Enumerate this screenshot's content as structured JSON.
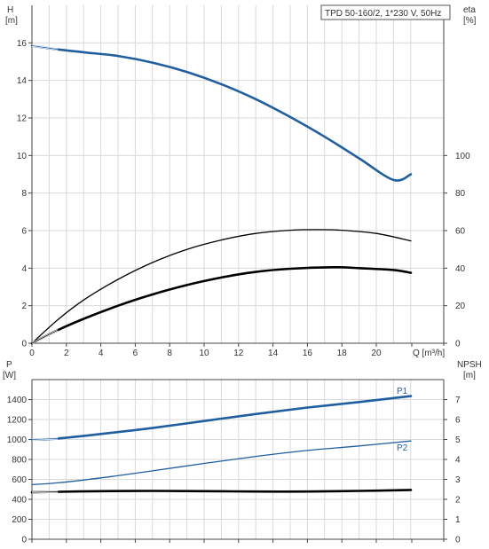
{
  "chart_data": [
    {
      "type": "line",
      "title": "TPD 50-160/2, 1*230 V, 50Hz",
      "xlabel": "Q [m³/h]",
      "xticks": [
        "0",
        "2",
        "4",
        "6",
        "8",
        "10",
        "12",
        "14",
        "16",
        "18",
        "20",
        "Q [m³/h]"
      ],
      "xlim": [
        0,
        22
      ],
      "ylabel_left": {
        "name": "H",
        "unit": "[m]"
      },
      "ylim_left": [
        0,
        18
      ],
      "yticks_left": [
        0,
        2,
        4,
        6,
        8,
        10,
        12,
        14,
        16
      ],
      "ylabel_right": {
        "name": "eta",
        "unit": "[%]"
      },
      "ylim_right": [
        0,
        180
      ],
      "yticks_right": [
        0,
        20,
        40,
        60,
        80,
        100
      ],
      "grid": true,
      "series": [
        {
          "name": "",
          "axis": "left",
          "color": "#1f5fa0",
          "style": "thick",
          "x": [
            0,
            1.5,
            3,
            5,
            7,
            9,
            11,
            13,
            15,
            17,
            19,
            21,
            22.4
          ],
          "y": [
            15.85,
            15.65,
            15.5,
            15.3,
            14.95,
            14.45,
            13.8,
            13.0,
            12.05,
            11.0,
            9.85,
            8.7,
            9.0
          ]
        },
        {
          "name": "",
          "axis": "right",
          "color": "#000000",
          "style": "thin",
          "x": [
            0,
            1.5,
            3,
            5,
            7,
            9,
            11,
            13,
            15,
            16.5,
            18,
            20,
            22.4
          ],
          "y": [
            0,
            12.5,
            23,
            34,
            43,
            50,
            55,
            58.5,
            60.2,
            60.5,
            60.2,
            58.5,
            54.5
          ]
        },
        {
          "name": "",
          "axis": "right",
          "color": "#000000",
          "style": "thick",
          "x": [
            0,
            1.5,
            3,
            5,
            7,
            9,
            11,
            13,
            15,
            17.5,
            19,
            21,
            22.4
          ],
          "y": [
            0,
            7,
            13,
            20,
            26,
            31,
            35,
            38,
            39.7,
            40.5,
            40,
            39,
            37.5
          ]
        }
      ]
    },
    {
      "type": "line",
      "xlim": [
        0,
        22
      ],
      "ylabel_left": {
        "name": "P",
        "unit": "[W]"
      },
      "ylim_left": [
        0,
        1600
      ],
      "yticks_left": [
        0,
        200,
        400,
        600,
        800,
        1000,
        1200,
        1400
      ],
      "ylabel_right": {
        "name": "NPSH",
        "unit": "[m]"
      },
      "ylim_right": [
        0,
        8
      ],
      "yticks_right": [
        0,
        1,
        2,
        3,
        4,
        5,
        6,
        7
      ],
      "grid": true,
      "series": [
        {
          "name": "P1",
          "axis": "left",
          "color": "#1f5fa0",
          "style": "thick",
          "x": [
            0,
            1.5,
            4,
            7,
            10,
            13,
            16,
            19,
            22.4
          ],
          "y": [
            1000,
            1010,
            1055,
            1115,
            1185,
            1255,
            1320,
            1375,
            1435
          ]
        },
        {
          "name": "P2",
          "axis": "left",
          "color": "#1f5fa0",
          "style": "thin",
          "x": [
            0,
            1.5,
            4,
            7,
            10,
            13,
            16,
            19,
            22.4
          ],
          "y": [
            548,
            565,
            615,
            685,
            760,
            830,
            890,
            935,
            985
          ]
        },
        {
          "name": "",
          "axis": "right",
          "color": "#000000",
          "style": "thick",
          "x": [
            0,
            1.5,
            4,
            7,
            10,
            13,
            16,
            19,
            22.4
          ],
          "y": [
            2.35,
            2.38,
            2.41,
            2.42,
            2.41,
            2.39,
            2.39,
            2.42,
            2.47
          ]
        }
      ]
    }
  ]
}
